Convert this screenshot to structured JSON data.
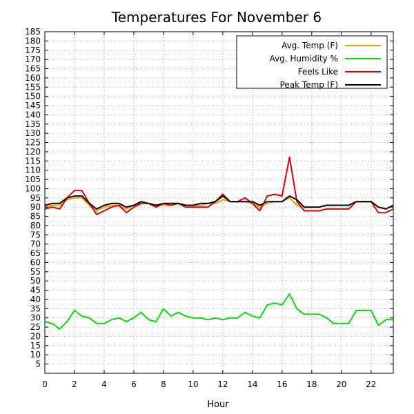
{
  "chart_data": {
    "type": "line",
    "title": "Temperatures For November 6",
    "xlabel": "Hour",
    "ylabel": "",
    "xlim": [
      0,
      23.5
    ],
    "ylim": [
      0,
      185
    ],
    "x_ticks": [
      0,
      2,
      4,
      6,
      8,
      10,
      12,
      14,
      16,
      18,
      20,
      22
    ],
    "y_ticks": [
      5,
      10,
      15,
      20,
      25,
      30,
      35,
      40,
      45,
      50,
      55,
      60,
      65,
      70,
      75,
      80,
      85,
      90,
      95,
      100,
      105,
      110,
      115,
      120,
      125,
      130,
      135,
      140,
      145,
      150,
      155,
      160,
      165,
      170,
      175,
      180,
      185
    ],
    "grid": true,
    "legend_position": "top-right",
    "x": [
      0,
      0.5,
      1,
      1.5,
      2,
      2.5,
      3,
      3.5,
      4,
      4.5,
      5,
      5.5,
      6,
      6.5,
      7,
      7.5,
      8,
      8.5,
      9,
      9.5,
      10,
      10.5,
      11,
      11.5,
      12,
      12.5,
      13,
      13.5,
      14,
      14.5,
      15,
      15.5,
      16,
      16.5,
      17,
      17.5,
      18,
      18.5,
      19,
      19.5,
      20,
      20.5,
      21,
      21.5,
      22,
      22.5,
      23,
      23.5
    ],
    "series": [
      {
        "name": "Avg. Temp (F)",
        "color": "#f0a000",
        "values": [
          90,
          91,
          91,
          94,
          95,
          95,
          91,
          88,
          90,
          91,
          91,
          89,
          91,
          92,
          92,
          91,
          91,
          91,
          92,
          91,
          91,
          91,
          92,
          92,
          94,
          93,
          93,
          93,
          92,
          90,
          92,
          93,
          93,
          95,
          91,
          90,
          90,
          90,
          91,
          91,
          91,
          91,
          93,
          93,
          93,
          90,
          89,
          91
        ]
      },
      {
        "name": "Avg. Humidity %",
        "color": "#00e000",
        "values": [
          28,
          27,
          24,
          28,
          34,
          31,
          30,
          27,
          27,
          29,
          30,
          28,
          30,
          33,
          29,
          28,
          35,
          31,
          33,
          31,
          30,
          30,
          29,
          30,
          29,
          30,
          30,
          33,
          31,
          30,
          37,
          38,
          37,
          43,
          35,
          32,
          32,
          32,
          30,
          27,
          27,
          27,
          34,
          34,
          34,
          26,
          29,
          29
        ]
      },
      {
        "name": "Feels Like",
        "color": "#e00000",
        "values": [
          89,
          90,
          89,
          95,
          99,
          99,
          92,
          86,
          88,
          90,
          91,
          87,
          90,
          92,
          92,
          90,
          92,
          91,
          92,
          90,
          90,
          90,
          90,
          93,
          97,
          93,
          93,
          95,
          92,
          88,
          96,
          97,
          96,
          117,
          93,
          88,
          88,
          88,
          89,
          89,
          89,
          89,
          93,
          93,
          93,
          87,
          87,
          89
        ]
      },
      {
        "name": "Peak Temp (F)",
        "color": "#000000",
        "values": [
          91,
          92,
          92,
          95,
          96,
          96,
          92,
          89,
          91,
          92,
          92,
          90,
          91,
          93,
          92,
          91,
          92,
          92,
          92,
          91,
          91,
          92,
          92,
          93,
          96,
          93,
          93,
          93,
          93,
          91,
          93,
          93,
          93,
          96,
          94,
          90,
          90,
          90,
          91,
          91,
          91,
          91,
          93,
          93,
          93,
          90,
          89,
          91
        ]
      }
    ]
  }
}
